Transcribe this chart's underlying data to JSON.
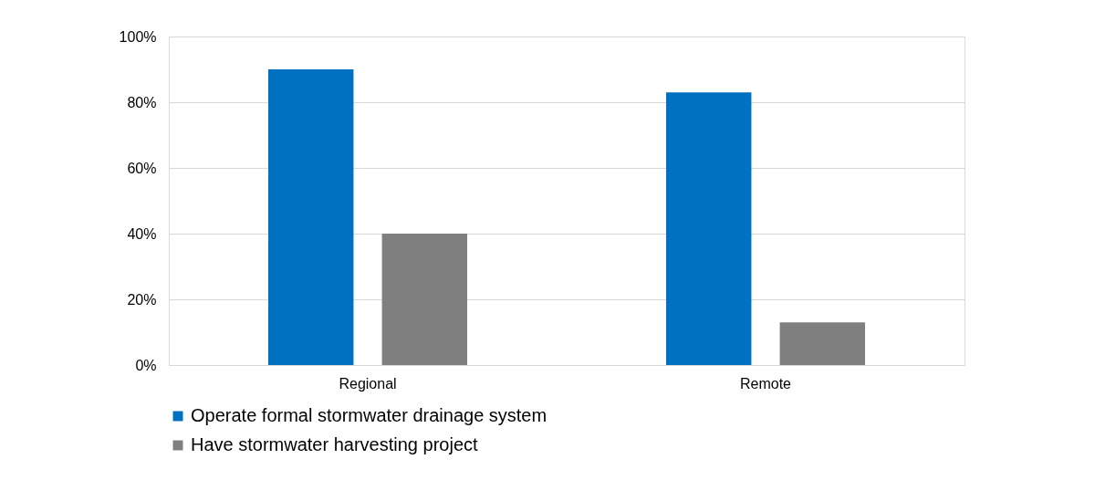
{
  "chart_data": {
    "type": "bar",
    "categories": [
      "Regional",
      "Remote"
    ],
    "series": [
      {
        "name": "Operate formal stormwater drainage system",
        "color": "#0070c0",
        "values": [
          90,
          83
        ]
      },
      {
        "name": "Have stormwater harvesting project",
        "color": "#7f7f7f",
        "values": [
          40,
          13
        ]
      }
    ],
    "ylim": [
      0,
      100
    ],
    "yticks": [
      {
        "value": 0,
        "label": "0%"
      },
      {
        "value": 20,
        "label": "20%"
      },
      {
        "value": 40,
        "label": "40%"
      },
      {
        "value": 60,
        "label": "60%"
      },
      {
        "value": 80,
        "label": "80%"
      },
      {
        "value": 100,
        "label": "100%"
      }
    ],
    "grid": "y",
    "legend": "bottom"
  }
}
